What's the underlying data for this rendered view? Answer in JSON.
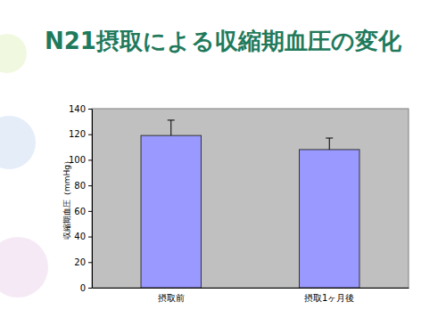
{
  "chart_data": {
    "type": "bar",
    "title": "N21摂取による収縮期血圧の変化",
    "y_label": "収縮期血圧（mmHg）",
    "categories": [
      "摂取前",
      "摂取1ヶ月後"
    ],
    "values": [
      119,
      108
    ],
    "errors": [
      12,
      9
    ],
    "color": "#9999ff",
    "ylim": [
      0,
      140
    ],
    "yticks": [
      0,
      20,
      40,
      60,
      80,
      100,
      120,
      140
    ],
    "grid": false
  }
}
